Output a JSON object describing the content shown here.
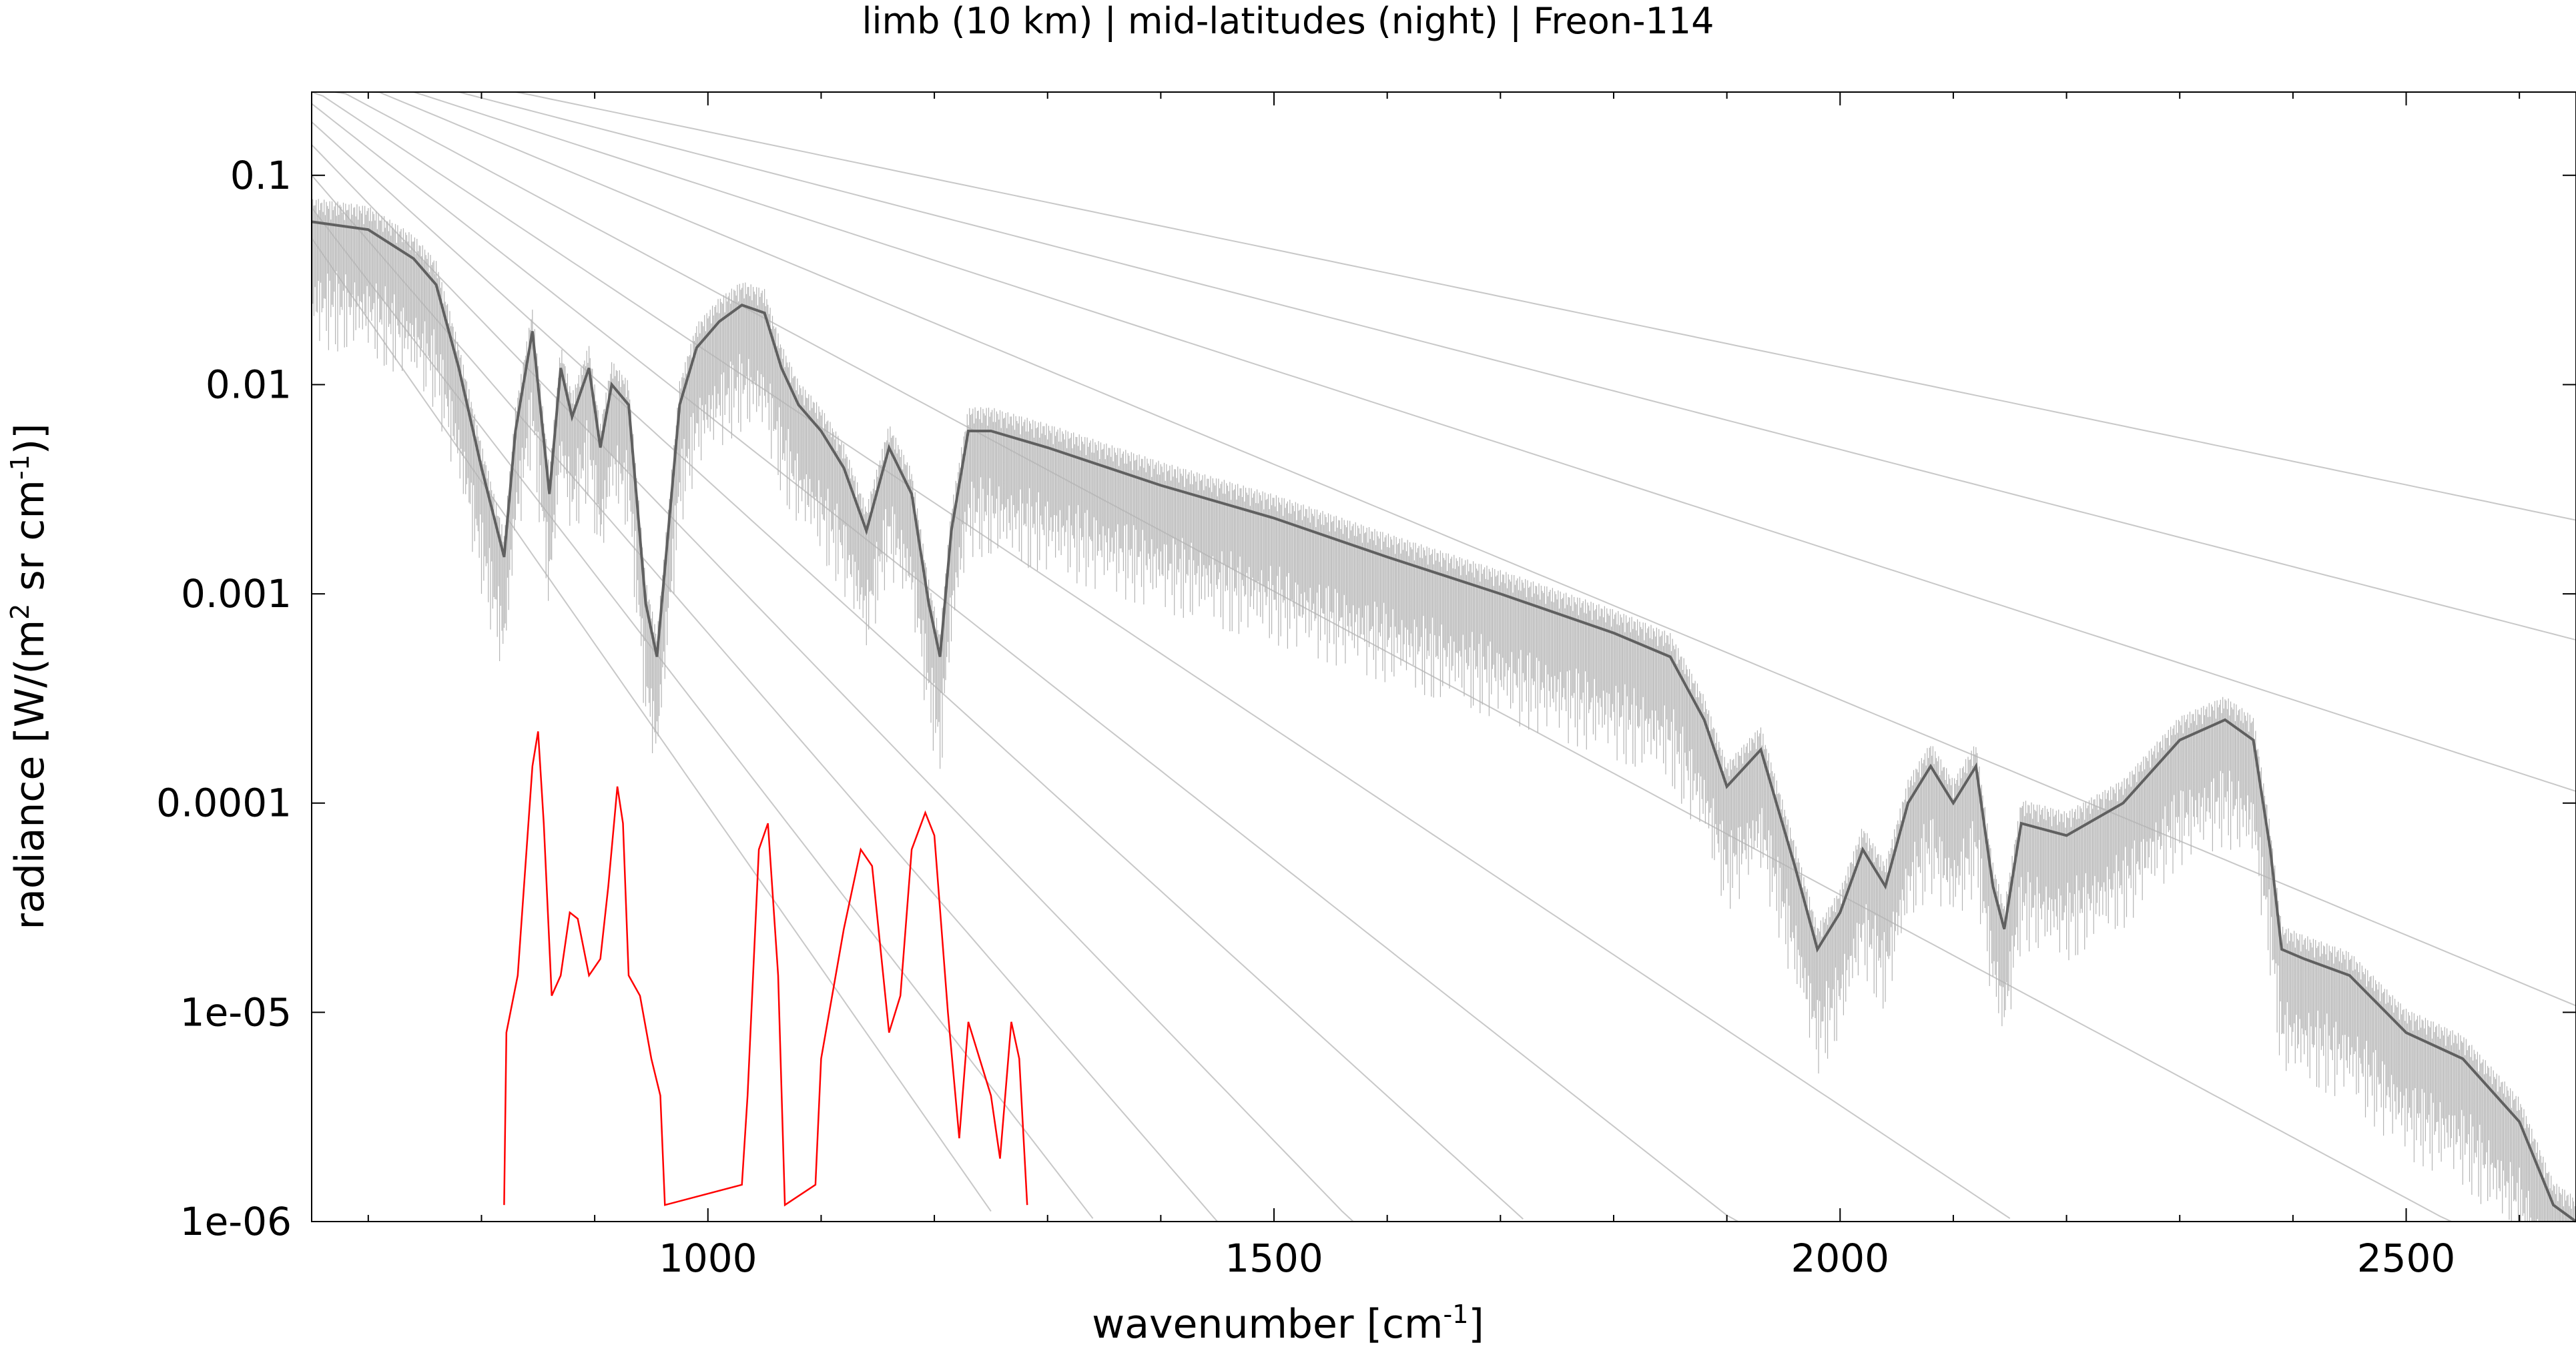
{
  "chart_data": {
    "type": "line",
    "title": "limb (10 km) | mid-latitudes (night) | Freon-114",
    "xlabel_main": "wavenumber [cm",
    "xlabel_sup": "-1",
    "xlabel_end": "]",
    "ylabel_a": "radiance [W/(m",
    "ylabel_sup1": "2",
    "ylabel_b": " sr cm",
    "ylabel_sup2": "-1",
    "ylabel_c": ")]",
    "xlim": [
      650,
      2650
    ],
    "ylim": [
      1e-06,
      0.25
    ],
    "yscale": "log",
    "x_ticks": [
      {
        "value": 1000,
        "label": "1000"
      },
      {
        "value": 1500,
        "label": "1500"
      },
      {
        "value": 2000,
        "label": "2000"
      },
      {
        "value": 2500,
        "label": "2500"
      }
    ],
    "y_ticks": [
      {
        "value": 0.1,
        "label": "0.1"
      },
      {
        "value": 0.01,
        "label": "0.01"
      },
      {
        "value": 0.001,
        "label": "0.001"
      },
      {
        "value": 0.0001,
        "label": "0.0001"
      },
      {
        "value": 1e-05,
        "label": "1e-05"
      },
      {
        "value": 1e-06,
        "label": "1e-06"
      }
    ],
    "grid": false,
    "legend": "none",
    "colors": {
      "spectrum": "#606060",
      "spectrum_light": "#b4b4b4",
      "reference": "#c8c8c8",
      "freon": "#ff0000"
    },
    "series": [
      {
        "role": "atmospheric spectrum",
        "points": [
          [
            650,
            0.06
          ],
          [
            700,
            0.055
          ],
          [
            740,
            0.04
          ],
          [
            760,
            0.03
          ],
          [
            780,
            0.012
          ],
          [
            800,
            0.004
          ],
          [
            820,
            0.0015
          ],
          [
            830,
            0.006
          ],
          [
            845,
            0.018
          ],
          [
            860,
            0.003
          ],
          [
            870,
            0.012
          ],
          [
            880,
            0.007
          ],
          [
            895,
            0.012
          ],
          [
            905,
            0.005
          ],
          [
            915,
            0.01
          ],
          [
            930,
            0.008
          ],
          [
            945,
            0.0009
          ],
          [
            955,
            0.0005
          ],
          [
            965,
            0.002
          ],
          [
            975,
            0.008
          ],
          [
            990,
            0.015
          ],
          [
            1010,
            0.02
          ],
          [
            1030,
            0.024
          ],
          [
            1050,
            0.022
          ],
          [
            1065,
            0.012
          ],
          [
            1080,
            0.008
          ],
          [
            1100,
            0.006
          ],
          [
            1120,
            0.004
          ],
          [
            1140,
            0.002
          ],
          [
            1160,
            0.005
          ],
          [
            1180,
            0.003
          ],
          [
            1195,
            0.0009
          ],
          [
            1205,
            0.0005
          ],
          [
            1215,
            0.002
          ],
          [
            1230,
            0.006
          ],
          [
            1250,
            0.006
          ],
          [
            1300,
            0.005
          ],
          [
            1400,
            0.0033
          ],
          [
            1500,
            0.0023
          ],
          [
            1600,
            0.0015
          ],
          [
            1700,
            0.001
          ],
          [
            1800,
            0.00065
          ],
          [
            1850,
            0.0005
          ],
          [
            1880,
            0.00025
          ],
          [
            1900,
            0.00012
          ],
          [
            1930,
            0.00018
          ],
          [
            1960,
            5e-05
          ],
          [
            1980,
            2e-05
          ],
          [
            2000,
            3e-05
          ],
          [
            2020,
            6e-05
          ],
          [
            2040,
            4e-05
          ],
          [
            2060,
            0.0001
          ],
          [
            2080,
            0.00015
          ],
          [
            2100,
            0.0001
          ],
          [
            2120,
            0.00015
          ],
          [
            2135,
            4e-05
          ],
          [
            2145,
            2.5e-05
          ],
          [
            2160,
            8e-05
          ],
          [
            2200,
            7e-05
          ],
          [
            2250,
            0.0001
          ],
          [
            2300,
            0.0002
          ],
          [
            2340,
            0.00025
          ],
          [
            2365,
            0.0002
          ],
          [
            2380,
            6e-05
          ],
          [
            2390,
            2e-05
          ],
          [
            2410,
            1.8e-05
          ],
          [
            2450,
            1.5e-05
          ],
          [
            2500,
            8e-06
          ],
          [
            2550,
            6e-06
          ],
          [
            2600,
            3e-06
          ],
          [
            2630,
            1.2e-06
          ],
          [
            2650,
            1e-06
          ]
        ]
      },
      {
        "role": "Freon-114 contribution",
        "points": [
          [
            820,
            1.2e-06
          ],
          [
            822,
            8e-06
          ],
          [
            832,
            1.5e-05
          ],
          [
            845,
            0.00015
          ],
          [
            850,
            0.00022
          ],
          [
            855,
            8e-05
          ],
          [
            862,
            1.2e-05
          ],
          [
            870,
            1.5e-05
          ],
          [
            878,
            3e-05
          ],
          [
            885,
            2.8e-05
          ],
          [
            895,
            1.5e-05
          ],
          [
            905,
            1.8e-05
          ],
          [
            912,
            4e-05
          ],
          [
            920,
            0.00012
          ],
          [
            925,
            8e-05
          ],
          [
            930,
            1.5e-05
          ],
          [
            940,
            1.2e-05
          ],
          [
            950,
            6e-06
          ],
          [
            958,
            4e-06
          ],
          [
            962,
            1.2e-06
          ],
          [
            1030,
            1.5e-06
          ],
          [
            1035,
            4e-06
          ],
          [
            1045,
            6e-05
          ],
          [
            1053,
            8e-05
          ],
          [
            1062,
            1.5e-05
          ],
          [
            1068,
            1.2e-06
          ],
          [
            1095,
            1.5e-06
          ],
          [
            1100,
            6e-06
          ],
          [
            1120,
            2.5e-05
          ],
          [
            1135,
            6e-05
          ],
          [
            1145,
            5e-05
          ],
          [
            1160,
            8e-06
          ],
          [
            1170,
            1.2e-05
          ],
          [
            1180,
            6e-05
          ],
          [
            1192,
            9e-05
          ],
          [
            1200,
            7e-05
          ],
          [
            1212,
            1e-05
          ],
          [
            1222,
            2.5e-06
          ],
          [
            1230,
            9e-06
          ],
          [
            1240,
            6e-06
          ],
          [
            1250,
            4e-06
          ],
          [
            1258,
            2e-06
          ],
          [
            1268,
            9e-06
          ],
          [
            1275,
            6e-06
          ],
          [
            1282,
            1.2e-06
          ]
        ]
      }
    ],
    "reference_curves": [
      {
        "temperature_k": 180,
        "a": 0.4,
        "b": 2.25
      },
      {
        "temperature_k": 190,
        "a": 0.38,
        "b": 2.8
      },
      {
        "temperature_k": 200,
        "a": 0.36,
        "b": 3.5
      },
      {
        "temperature_k": 210,
        "a": 0.34,
        "b": 4.5
      },
      {
        "temperature_k": 220,
        "a": 0.3,
        "b": 5.8
      },
      {
        "temperature_k": 230,
        "a": 0.26,
        "b": 7.2
      },
      {
        "temperature_k": 240,
        "a": 0.22,
        "b": 8.5
      },
      {
        "temperature_k": 250,
        "a": 0.18,
        "b": 9.8
      },
      {
        "temperature_k": 260,
        "a": 0.14,
        "b": 11.2
      },
      {
        "temperature_k": 270,
        "a": 0.1,
        "b": 12.5
      },
      {
        "temperature_k": 280,
        "a": 0.07,
        "b": 14.0
      },
      {
        "temperature_k": 290,
        "a": 0.05,
        "b": 15.5
      }
    ]
  }
}
